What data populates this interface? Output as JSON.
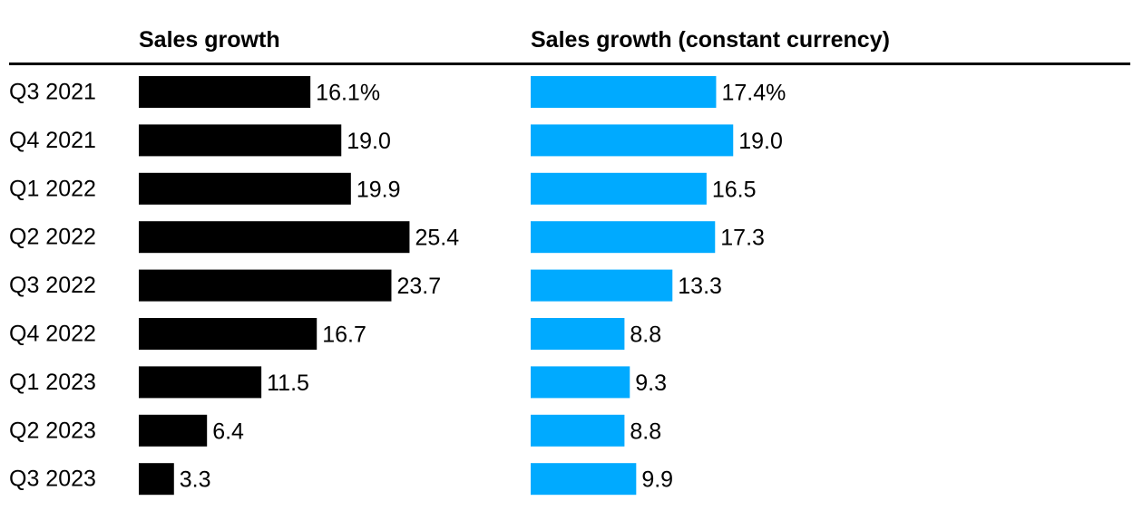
{
  "chart_data": {
    "type": "bar",
    "orientation": "horizontal",
    "categories": [
      "Q3 2021",
      "Q4 2021",
      "Q1 2022",
      "Q2 2022",
      "Q3 2022",
      "Q4 2022",
      "Q1 2023",
      "Q2 2023",
      "Q3 2023"
    ],
    "series": [
      {
        "name": "Sales growth",
        "color": "#000000",
        "values": [
          16.1,
          19.0,
          19.9,
          25.4,
          23.7,
          16.7,
          11.5,
          6.4,
          3.3
        ],
        "labels": [
          "16.1%",
          "19.0",
          "19.9",
          "25.4",
          "23.7",
          "16.7",
          "11.5",
          "6.4",
          "3.3"
        ]
      },
      {
        "name": "Sales growth (constant currency)",
        "color": "#00aaff",
        "values": [
          17.4,
          19.0,
          16.5,
          17.3,
          13.3,
          8.8,
          9.3,
          8.8,
          9.9
        ],
        "labels": [
          "17.4%",
          "19.0",
          "16.5",
          "17.3",
          "13.3",
          "8.8",
          "9.3",
          "8.8",
          "9.9"
        ]
      }
    ],
    "title": "",
    "xlabel": "",
    "ylabel": "",
    "grid": false,
    "legend": "none"
  }
}
